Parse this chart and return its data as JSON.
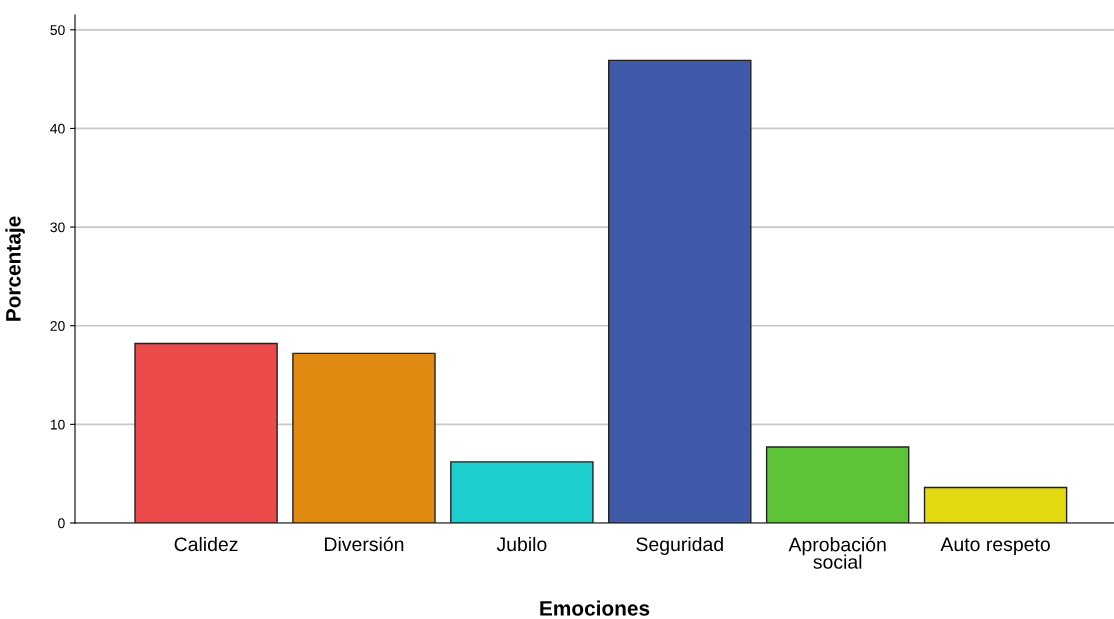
{
  "chart_data": {
    "type": "bar",
    "xlabel": "Emociones",
    "ylabel": "Porcentaje",
    "categories": [
      "Calidez",
      "Diversión",
      "Jubilo",
      "Seguridad",
      "Aprobación\nsocial",
      "Auto respeto"
    ],
    "values": [
      18.2,
      17.2,
      6.2,
      46.9,
      7.7,
      3.6
    ],
    "colors": [
      "#eb4b4b",
      "#e08a10",
      "#1ccece",
      "#3f5aa8",
      "#5ec437",
      "#e2d911"
    ],
    "ylim": [
      0,
      51.5
    ],
    "yticks": [
      0,
      10,
      20,
      30,
      40,
      50
    ],
    "grid": "y"
  }
}
